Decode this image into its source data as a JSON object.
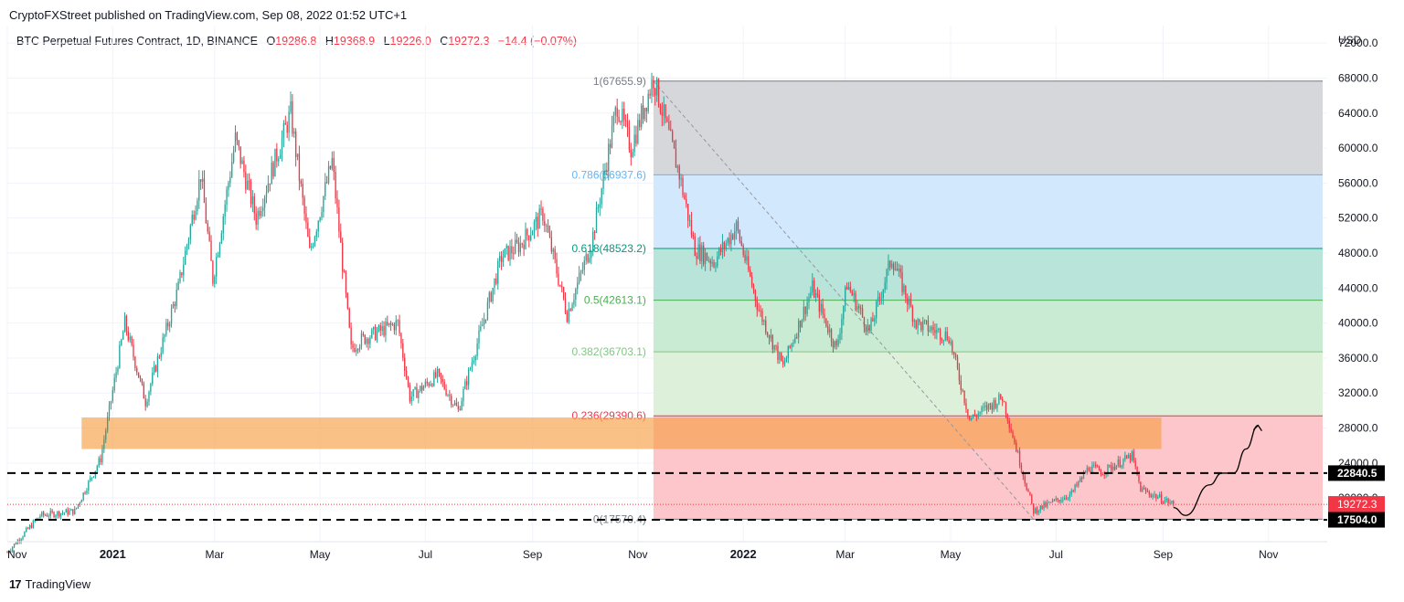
{
  "header": {
    "publisher": "CryptoFXStreet published on TradingView.com, Sep 08, 2022 01:52 UTC+1"
  },
  "legend": {
    "symbol": "BTC Perpetual Futures Contract, 1D, BINANCE",
    "o_key": "O",
    "o_val": "19286.8",
    "h_key": "H",
    "h_val": "19368.9",
    "l_key": "L",
    "l_val": "19226.0",
    "c_key": "C",
    "c_val": "19272.3",
    "change": "−14.4 (−0.07%)"
  },
  "footer": {
    "brand": "TradingView"
  },
  "colors": {
    "up": "#26a69a",
    "down": "#f23645",
    "grid": "#f0f3fa",
    "orange_zone": "#f7a046",
    "fib_top": "#787b86",
    "fib_786": "#64b5f6",
    "fib_618": "#089981",
    "fib_05": "#4caf50",
    "fib_382": "#81c784",
    "fib_236": "#f23645"
  },
  "chart_data": {
    "type": "candlestick",
    "title": "BTC Perpetual Futures Contract, 1D, BINANCE",
    "y_unit": "USD",
    "ylim": [
      15000,
      74000
    ],
    "y_ticks": [
      "72000.0",
      "68000.0",
      "64000.0",
      "60000.0",
      "56000.0",
      "52000.0",
      "48000.0",
      "44000.0",
      "40000.0",
      "36000.0",
      "32000.0",
      "28000.0",
      "24000.0",
      "20000.0"
    ],
    "x_ticks": [
      "Nov",
      "2021",
      "Mar",
      "May",
      "Jul",
      "Sep",
      "Nov",
      "2022",
      "Mar",
      "May",
      "Jul",
      "Sep",
      "Nov"
    ],
    "x_tick_dates": [
      "2020-11-01",
      "2021-01-01",
      "2021-03-01",
      "2021-05-01",
      "2021-07-01",
      "2021-09-01",
      "2021-11-01",
      "2022-01-01",
      "2022-03-01",
      "2022-05-01",
      "2022-07-01",
      "2022-09-01",
      "2022-11-01"
    ],
    "xlim": [
      "2020-11-01",
      "2022-12-05"
    ],
    "price_path": [
      [
        "2020-11-01",
        13800
      ],
      [
        "2020-11-20",
        18000
      ],
      [
        "2020-12-10",
        18500
      ],
      [
        "2020-12-25",
        24500
      ],
      [
        "2021-01-08",
        40000
      ],
      [
        "2021-01-20",
        31000
      ],
      [
        "2021-02-08",
        44000
      ],
      [
        "2021-02-21",
        57000
      ],
      [
        "2021-02-28",
        45000
      ],
      [
        "2021-03-13",
        61000
      ],
      [
        "2021-03-25",
        52000
      ],
      [
        "2021-04-14",
        64000
      ],
      [
        "2021-04-25",
        48000
      ],
      [
        "2021-05-08",
        58500
      ],
      [
        "2021-05-19",
        37000
      ],
      [
        "2021-05-24",
        38000
      ],
      [
        "2021-06-15",
        40000
      ],
      [
        "2021-06-22",
        31500
      ],
      [
        "2021-07-08",
        34000
      ],
      [
        "2021-07-20",
        30000
      ],
      [
        "2021-08-14",
        47500
      ],
      [
        "2021-08-25",
        49000
      ],
      [
        "2021-09-07",
        52500
      ],
      [
        "2021-09-21",
        41000
      ],
      [
        "2021-10-05",
        49000
      ],
      [
        "2021-10-20",
        65000
      ],
      [
        "2021-10-28",
        60000
      ],
      [
        "2021-11-10",
        68000
      ],
      [
        "2021-11-25",
        57000
      ],
      [
        "2021-12-04",
        48500
      ],
      [
        "2021-12-15",
        47000
      ],
      [
        "2021-12-28",
        51000
      ],
      [
        "2022-01-10",
        41500
      ],
      [
        "2022-01-24",
        35000
      ],
      [
        "2022-02-10",
        44000
      ],
      [
        "2022-02-24",
        37000
      ],
      [
        "2022-03-02",
        44500
      ],
      [
        "2022-03-15",
        39000
      ],
      [
        "2022-03-28",
        47500
      ],
      [
        "2022-04-11",
        40000
      ],
      [
        "2022-04-30",
        38500
      ],
      [
        "2022-05-12",
        29000
      ],
      [
        "2022-05-31",
        31500
      ],
      [
        "2022-06-13",
        22000
      ],
      [
        "2022-06-18",
        18500
      ],
      [
        "2022-07-10",
        20500
      ],
      [
        "2022-07-20",
        23500
      ],
      [
        "2022-07-28",
        23000
      ],
      [
        "2022-08-14",
        24800
      ],
      [
        "2022-08-19",
        21000
      ],
      [
        "2022-09-07",
        19272
      ]
    ],
    "fib_levels": [
      {
        "ratio": "1",
        "price": 67655.9,
        "label": "1(67655.9)"
      },
      {
        "ratio": "0.786",
        "price": 56937.6,
        "label": "0.786(56937.6)"
      },
      {
        "ratio": "0.618",
        "price": 48523.2,
        "label": "0.618(48523.2)"
      },
      {
        "ratio": "0.5",
        "price": 42613.1,
        "label": "0.5(42613.1)"
      },
      {
        "ratio": "0.382",
        "price": 36703.1,
        "label": "0.382(36703.1)"
      },
      {
        "ratio": "0.236",
        "price": 29390.6,
        "label": "0.236(29390.6)"
      },
      {
        "ratio": "0",
        "price": 17570.4,
        "label": "0(17570.4)"
      }
    ],
    "fib_start_date": "2021-11-10",
    "fib_end_date": "2022-12-05",
    "orange_zone": {
      "from": "2020-12-14",
      "to": "2022-08-31",
      "low": 25600,
      "high": 29200
    },
    "dashed_levels": [
      {
        "price": 22840.5,
        "label": "22840.5"
      },
      {
        "price": 17504.0,
        "label": "17504.0"
      }
    ],
    "last_price": {
      "price": 19272.3,
      "label": "19272.3",
      "countdown": "23:07:33"
    },
    "projection": [
      [
        "2022-09-07",
        18900
      ],
      [
        "2022-09-14",
        18000
      ],
      [
        "2022-09-28",
        21500
      ],
      [
        "2022-10-05",
        22840
      ],
      [
        "2022-10-12",
        22840
      ],
      [
        "2022-10-19",
        25600
      ],
      [
        "2022-10-26",
        28300
      ]
    ],
    "trend_line": [
      [
        "2021-11-10",
        67655.9
      ],
      [
        "2022-06-18",
        17570.4
      ]
    ]
  }
}
